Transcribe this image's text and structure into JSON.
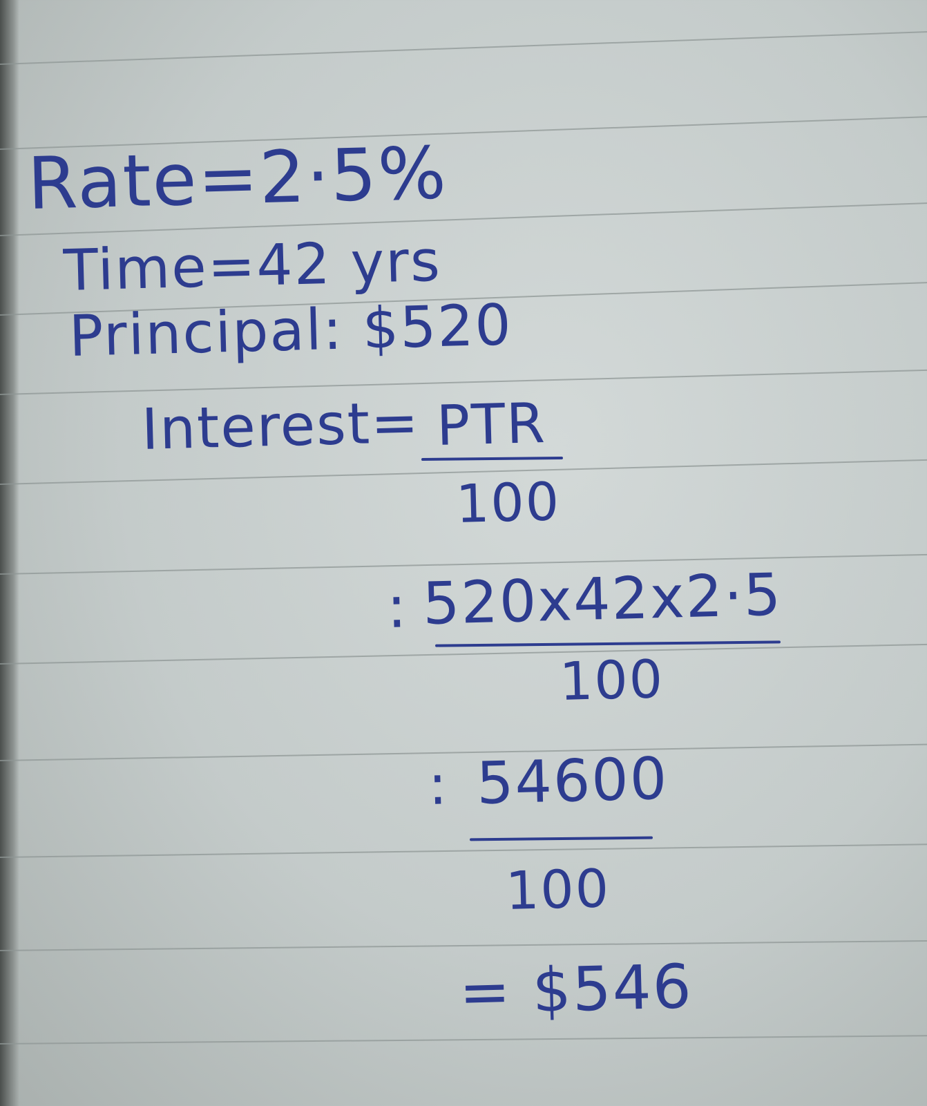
{
  "notes": {
    "rate": "Rate=2·5%",
    "time": "Time=42 yrs",
    "principal": "Principal: $520",
    "interest_label": "Interest=",
    "formula_numerator": "PTR",
    "formula_denominator": "100",
    "step1_prefix": ":",
    "step1_numerator": "520x42x2·5",
    "step1_denominator": "100",
    "step2_prefix": ":",
    "step2_numerator": "54600",
    "step2_denominator": "100",
    "result": "= $546"
  },
  "colors": {
    "ink": "#2d3c8f",
    "paper": "#c9cfce",
    "rule": "#8f9795"
  }
}
